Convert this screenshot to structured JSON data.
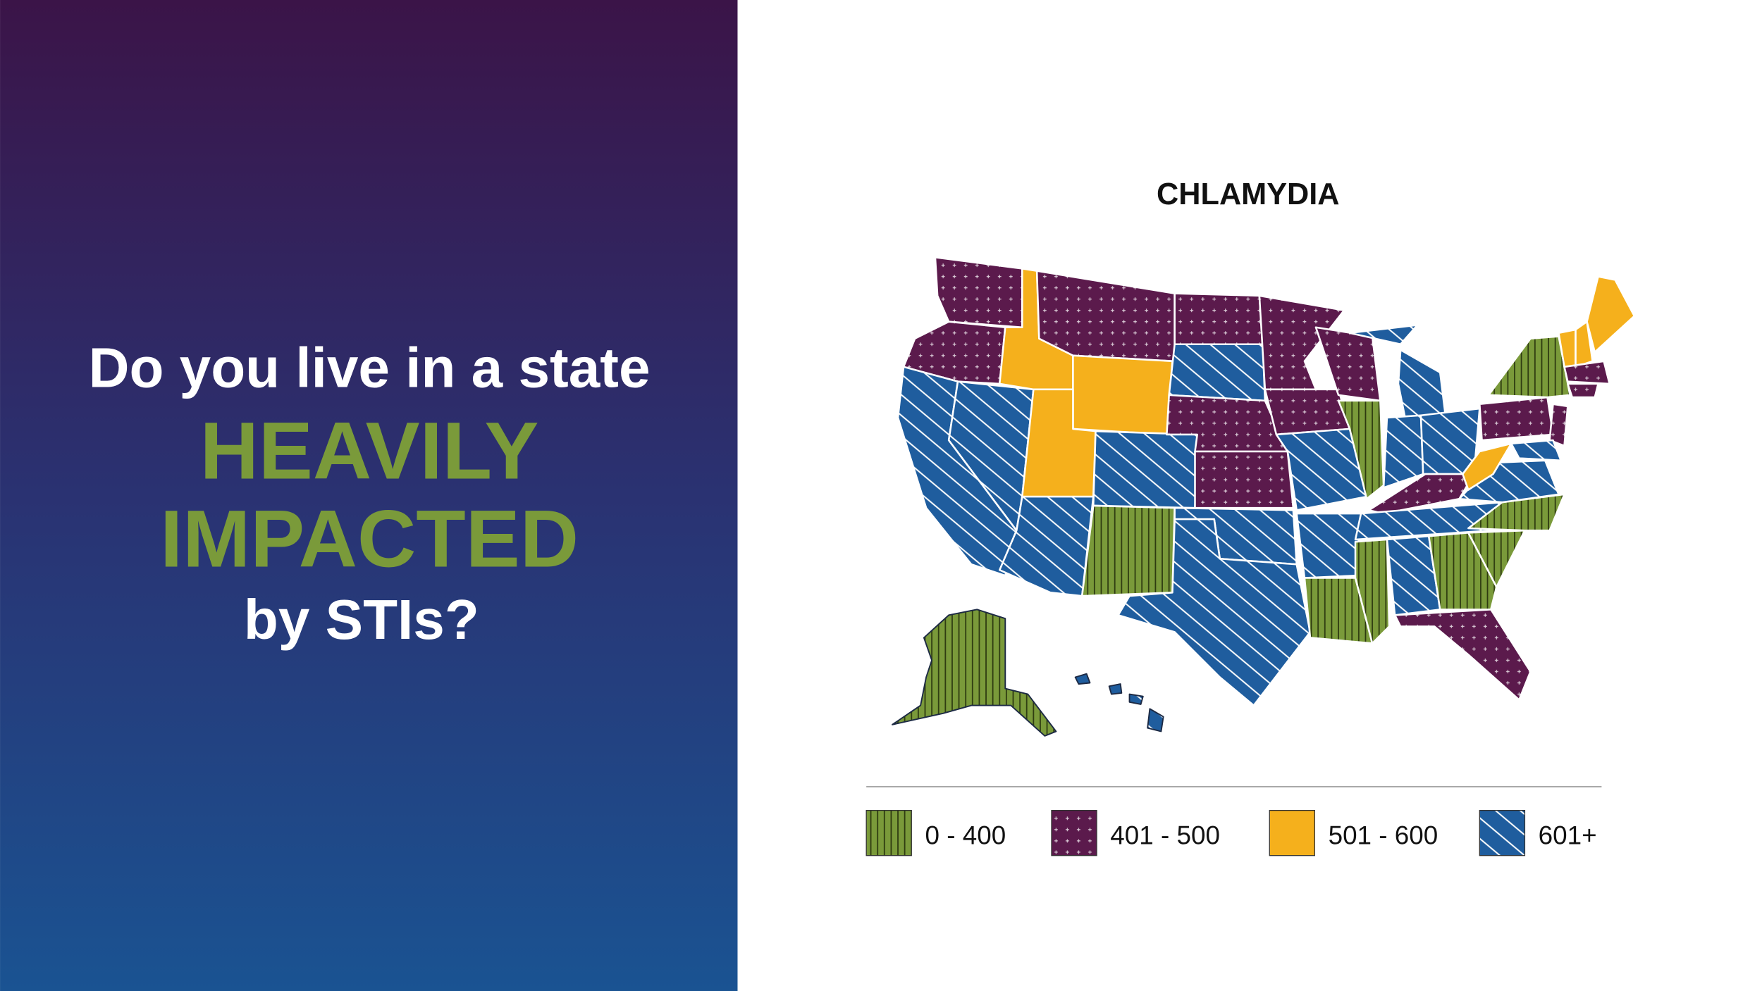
{
  "left": {
    "line1": "Do you live in a state",
    "line2": "HEAVILY",
    "line3": "IMPACTED",
    "line4": "by STIs?"
  },
  "map": {
    "title": "CHLAMYDIA",
    "legend": [
      {
        "label": "0 - 400",
        "color": "#7a9a3a"
      },
      {
        "label": "401 - 500",
        "color": "#5b1a4c"
      },
      {
        "label": "501 - 600",
        "color": "#f5b01c"
      },
      {
        "label": "601+",
        "color": "#1f5d9e"
      }
    ]
  }
}
